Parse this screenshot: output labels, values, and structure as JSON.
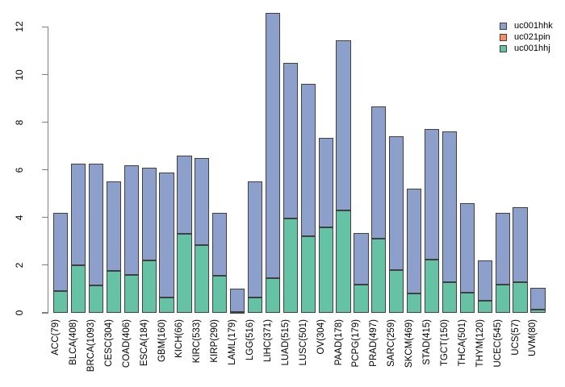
{
  "colors": {
    "background": "#ffffff",
    "axis": "#7f7f7f",
    "text": "#000000",
    "bar_border": "#404040",
    "uc001hhk": "#8DA0CB",
    "uc021pin": "#FC8D62",
    "uc001hhj": "#66C2A5"
  },
  "legend": {
    "items": [
      {
        "label": "uc001hhk",
        "color": "#8DA0CB"
      },
      {
        "label": "uc021pin",
        "color": "#FC8D62"
      },
      {
        "label": "uc001hhj",
        "color": "#66C2A5"
      }
    ]
  },
  "chart_data": {
    "type": "bar",
    "stacked": true,
    "title": "",
    "xlabel": "",
    "ylabel": "",
    "ylim": [
      0,
      12.6
    ],
    "yticks": [
      0,
      2,
      4,
      6,
      8,
      10,
      12
    ],
    "grid": false,
    "legend_position": "top-right",
    "categories": [
      "ACC(79)",
      "BLCA(408)",
      "BRCA(1093)",
      "CESC(304)",
      "COAD(406)",
      "ESCA(184)",
      "GBM(160)",
      "KICH(66)",
      "KIRC(533)",
      "KIRP(290)",
      "LAML(179)",
      "LGG(516)",
      "LIHC(371)",
      "LUAD(515)",
      "LUSC(501)",
      "OV(304)",
      "PAAD(178)",
      "PCPG(179)",
      "PRAD(497)",
      "SARC(259)",
      "SKCM(469)",
      "STAD(415)",
      "TGCT(150)",
      "THCA(501)",
      "THYM(120)",
      "UCEC(545)",
      "UCS(57)",
      "UVM(80)"
    ],
    "series": [
      {
        "name": "uc001hhj",
        "color": "#66C2A5",
        "values": [
          0.9,
          2.0,
          1.15,
          1.75,
          1.6,
          2.2,
          0.65,
          3.3,
          2.85,
          1.55,
          0.05,
          0.65,
          1.45,
          3.95,
          3.2,
          3.6,
          4.3,
          1.2,
          3.1,
          1.8,
          0.8,
          2.25,
          1.3,
          0.85,
          0.5,
          1.2,
          1.3,
          0.15
        ]
      },
      {
        "name": "uc021pin",
        "color": "#FC8D62",
        "values": [
          0,
          0,
          0,
          0,
          0,
          0,
          0,
          0,
          0,
          0,
          0,
          0,
          0,
          0,
          0,
          0,
          0,
          0,
          0,
          0,
          0,
          0,
          0,
          0,
          0,
          0,
          0,
          0
        ]
      },
      {
        "name": "uc001hhk",
        "color": "#8DA0CB",
        "values": [
          3.3,
          4.25,
          5.1,
          3.75,
          4.6,
          3.9,
          5.25,
          3.3,
          3.65,
          2.65,
          0.95,
          4.85,
          11.15,
          6.55,
          6.4,
          3.75,
          7.15,
          2.15,
          5.55,
          5.6,
          4.4,
          5.45,
          6.3,
          3.75,
          1.7,
          3.0,
          3.15,
          0.9
        ]
      }
    ],
    "totals": [
      4.2,
      6.25,
      6.25,
      5.5,
      6.2,
      6.1,
      5.9,
      6.6,
      6.5,
      4.2,
      1.0,
      5.5,
      12.6,
      10.5,
      9.6,
      7.35,
      11.45,
      3.35,
      8.65,
      7.4,
      5.2,
      7.7,
      7.6,
      4.6,
      2.2,
      4.2,
      4.45,
      1.05
    ]
  }
}
